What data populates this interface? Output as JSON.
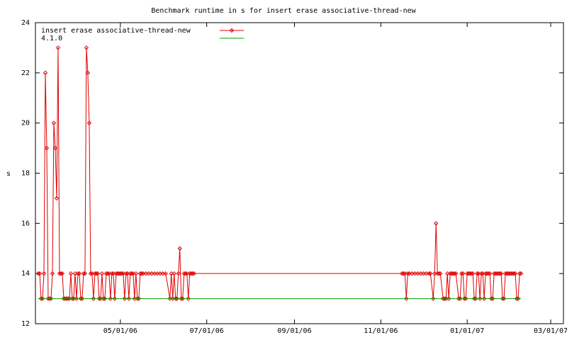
{
  "chart_data": {
    "type": "line",
    "title": "Benchmark runtime in s for insert erase associative-thread-new",
    "y_label": "s",
    "ylim": [
      12,
      24
    ],
    "yticks": [
      12,
      14,
      16,
      18,
      20,
      22,
      24
    ],
    "xlim": [
      "2006-03-02",
      "2007-03-10"
    ],
    "xticks": [
      {
        "value": "2006-05-01",
        "label": "05/01/06"
      },
      {
        "value": "2006-07-01",
        "label": "07/01/06"
      },
      {
        "value": "2006-09-01",
        "label": "09/01/06"
      },
      {
        "value": "2006-11-01",
        "label": "11/01/06"
      },
      {
        "value": "2007-01-01",
        "label": "01/01/07"
      },
      {
        "value": "2007-03-01",
        "label": "03/01/07"
      }
    ],
    "legend": "upper left",
    "series": [
      {
        "name": "insert erase associative-thread-new",
        "color": "#e00000",
        "markers": true,
        "x": [
          "2006-03-04",
          "2006-03-05",
          "2006-03-06",
          "2006-03-07",
          "2006-03-08",
          "2006-03-09",
          "2006-03-10",
          "2006-03-11",
          "2006-03-12",
          "2006-03-13",
          "2006-03-14",
          "2006-03-15",
          "2006-03-16",
          "2006-03-17",
          "2006-03-18",
          "2006-03-19",
          "2006-03-20",
          "2006-03-21",
          "2006-03-22",
          "2006-03-23",
          "2006-03-24",
          "2006-03-25",
          "2006-03-26",
          "2006-03-27",
          "2006-03-28",
          "2006-03-29",
          "2006-03-30",
          "2006-03-31",
          "2006-04-01",
          "2006-04-02",
          "2006-04-03",
          "2006-04-04",
          "2006-04-05",
          "2006-04-06",
          "2006-04-07",
          "2006-04-08",
          "2006-04-09",
          "2006-04-10",
          "2006-04-11",
          "2006-04-12",
          "2006-04-13",
          "2006-04-14",
          "2006-04-15",
          "2006-04-16",
          "2006-04-17",
          "2006-04-18",
          "2006-04-19",
          "2006-04-20",
          "2006-04-21",
          "2006-04-22",
          "2006-04-23",
          "2006-04-24",
          "2006-04-25",
          "2006-04-26",
          "2006-04-27",
          "2006-04-28",
          "2006-04-29",
          "2006-04-30",
          "2006-05-01",
          "2006-05-02",
          "2006-05-03",
          "2006-05-04",
          "2006-05-05",
          "2006-05-06",
          "2006-05-07",
          "2006-05-08",
          "2006-05-09",
          "2006-05-10",
          "2006-05-11",
          "2006-05-12",
          "2006-05-13",
          "2006-05-14",
          "2006-05-15",
          "2006-05-16",
          "2006-05-17",
          "2006-05-19",
          "2006-05-21",
          "2006-05-23",
          "2006-05-25",
          "2006-05-27",
          "2006-05-29",
          "2006-05-31",
          "2006-06-02",
          "2006-06-05",
          "2006-06-06",
          "2006-06-07",
          "2006-06-08",
          "2006-06-09",
          "2006-06-10",
          "2006-06-11",
          "2006-06-12",
          "2006-06-13",
          "2006-06-14",
          "2006-06-15",
          "2006-06-16",
          "2006-06-17",
          "2006-06-18",
          "2006-06-19",
          "2006-06-20",
          "2006-06-21",
          "2006-06-22",
          "2006-11-16",
          "2006-11-17",
          "2006-11-18",
          "2006-11-19",
          "2006-11-20",
          "2006-11-21",
          "2006-11-23",
          "2006-11-25",
          "2006-11-27",
          "2006-11-29",
          "2006-12-01",
          "2006-12-03",
          "2006-12-05",
          "2006-12-06",
          "2006-12-08",
          "2006-12-09",
          "2006-12-10",
          "2006-12-11",
          "2006-12-12",
          "2006-12-13",
          "2006-12-15",
          "2006-12-16",
          "2006-12-17",
          "2006-12-18",
          "2006-12-19",
          "2006-12-20",
          "2006-12-21",
          "2006-12-22",
          "2006-12-23",
          "2006-12-24",
          "2006-12-26",
          "2006-12-27",
          "2006-12-28",
          "2006-12-29",
          "2006-12-30",
          "2006-12-31",
          "2007-01-01",
          "2007-01-02",
          "2007-01-03",
          "2007-01-04",
          "2007-01-05",
          "2007-01-06",
          "2007-01-07",
          "2007-01-08",
          "2007-01-09",
          "2007-01-10",
          "2007-01-11",
          "2007-01-12",
          "2007-01-13",
          "2007-01-14",
          "2007-01-15",
          "2007-01-16",
          "2007-01-17",
          "2007-01-18",
          "2007-01-19",
          "2007-01-20",
          "2007-01-21",
          "2007-01-22",
          "2007-01-23",
          "2007-01-24",
          "2007-01-25",
          "2007-01-26",
          "2007-01-27",
          "2007-01-28",
          "2007-01-29",
          "2007-01-30",
          "2007-01-31",
          "2007-02-01",
          "2007-02-02",
          "2007-02-03",
          "2007-02-04",
          "2007-02-05",
          "2007-02-06",
          "2007-02-07",
          "2007-02-08"
        ],
        "values": [
          14,
          14,
          13,
          13,
          14,
          22,
          19,
          13,
          13,
          13,
          14,
          20,
          19,
          17,
          23,
          14,
          14,
          14,
          13,
          13,
          13,
          13,
          13,
          14,
          13,
          13,
          14,
          13,
          14,
          14,
          13,
          13,
          14,
          14,
          23,
          22,
          20,
          14,
          14,
          13,
          14,
          14,
          14,
          13,
          13,
          14,
          13,
          13,
          14,
          14,
          14,
          13,
          14,
          14,
          13,
          14,
          14,
          14,
          14,
          14,
          14,
          13,
          14,
          14,
          13,
          14,
          14,
          14,
          13,
          14,
          13,
          13,
          14,
          14,
          14,
          14,
          14,
          14,
          14,
          14,
          14,
          14,
          14,
          13,
          14,
          13,
          14,
          13,
          13,
          14,
          15,
          13,
          13,
          14,
          14,
          14,
          13,
          14,
          14,
          14,
          14,
          14,
          14,
          14,
          13,
          14,
          14,
          14,
          14,
          14,
          14,
          14,
          14,
          14,
          14,
          13,
          14,
          16,
          14,
          14,
          14,
          13,
          13,
          13,
          14,
          13,
          14,
          14,
          14,
          14,
          14,
          13,
          13,
          14,
          14,
          13,
          13,
          14,
          14,
          14,
          14,
          14,
          13,
          13,
          14,
          14,
          13,
          14,
          14,
          13,
          14,
          14,
          14,
          14,
          13,
          13,
          14,
          14,
          14,
          14,
          14,
          14,
          13,
          13,
          14,
          14,
          14,
          14,
          14,
          14,
          14,
          14,
          13,
          13,
          14,
          14
        ]
      },
      {
        "name": "4.1.0",
        "color": "#00a000",
        "markers": false,
        "x": [
          "2006-03-04",
          "2007-02-08"
        ],
        "values": [
          13,
          13
        ]
      }
    ]
  }
}
